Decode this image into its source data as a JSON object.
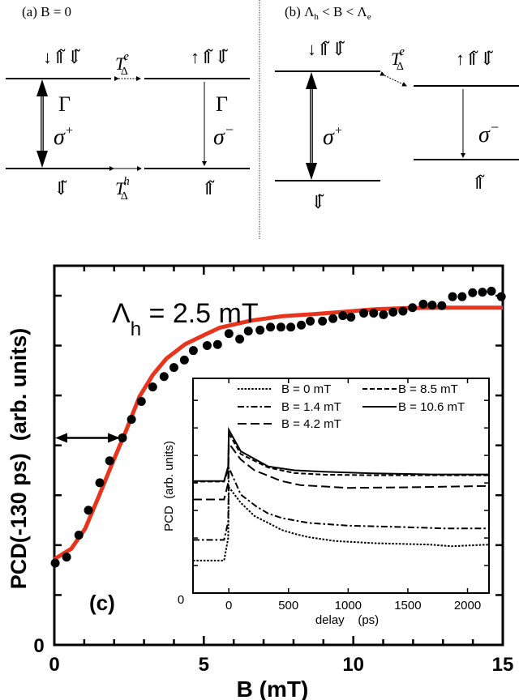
{
  "diagram": {
    "panel_a_title": "(a) B = 0",
    "panel_b_title": "(b) Λh < B < Λe",
    "panel_b_title_parts": {
      "open": "(b) Λ",
      "sub1": "h",
      "mid": " < B < Λ",
      "sub2": "e"
    },
    "upper_left_state": "↓⇑̃⇓̃",
    "upper_right_state": "↑⇑̃⇓̃",
    "lower_left_state": "⇓̃",
    "lower_right_state": "⇑̃",
    "gamma": "Γ",
    "sigma": "σ",
    "sigma_plus": "+",
    "sigma_minus": "−",
    "T": "T",
    "T_sub": "Δ",
    "T_sup_e": "e",
    "T_sup_h": "h"
  },
  "chart_data": [
    {
      "type": "scatter",
      "panel_label": "(c)",
      "annotation": {
        "symbol": "Λ",
        "sub": "h",
        "text": " = 2.5 mT"
      },
      "xlabel": "B (mT)",
      "ylabel": "PCD(-130 ps)  (arb. units)",
      "xlim": [
        0,
        15
      ],
      "ylim": [
        0,
        7.6
      ],
      "xticks": [
        0,
        5,
        10,
        15
      ],
      "yticks_labeled": [
        0
      ],
      "grid": false,
      "colors": {
        "points": "#000000",
        "fit": "#e8341c"
      },
      "points": {
        "x": [
          0.03,
          0.41,
          0.82,
          1.14,
          1.52,
          1.85,
          2.28,
          2.58,
          2.91,
          3.29,
          3.67,
          4.0,
          4.35,
          4.65,
          5.11,
          5.46,
          5.84,
          6.2,
          6.49,
          6.88,
          7.23,
          7.58,
          7.91,
          8.26,
          8.56,
          8.97,
          9.32,
          9.65,
          9.92,
          10.35,
          10.68,
          11.01,
          11.33,
          11.66,
          11.98,
          12.34,
          12.64,
          12.96,
          13.32,
          13.64,
          13.99,
          14.32,
          14.62,
          14.95
        ],
        "y": [
          1.64,
          1.76,
          2.2,
          2.7,
          3.25,
          3.69,
          4.15,
          4.52,
          4.88,
          5.17,
          5.38,
          5.56,
          5.71,
          5.9,
          6.0,
          6.02,
          6.24,
          6.13,
          6.29,
          6.31,
          6.37,
          6.37,
          6.37,
          6.41,
          6.49,
          6.49,
          6.54,
          6.6,
          6.57,
          6.65,
          6.65,
          6.62,
          6.67,
          6.69,
          6.76,
          6.83,
          6.81,
          6.8,
          6.98,
          6.98,
          7.06,
          7.07,
          7.09,
          6.98
        ]
      },
      "fit": {
        "x": [
          0,
          0.57,
          1.03,
          1.49,
          1.93,
          2.39,
          2.85,
          3.29,
          3.75,
          4.38,
          5.11,
          5.54,
          6.58,
          7.64,
          8.67,
          9.73,
          10.76,
          11.82,
          12.85,
          13.89,
          15
        ],
        "y": [
          1.72,
          1.93,
          2.33,
          2.98,
          3.63,
          4.28,
          4.98,
          5.41,
          5.74,
          6.03,
          6.24,
          6.36,
          6.5,
          6.59,
          6.63,
          6.68,
          6.73,
          6.75,
          6.76,
          6.76,
          6.76
        ]
      },
      "double_arrow": {
        "y": 4.15,
        "x_from": 0,
        "x_to": 2.2
      }
    },
    {
      "type": "line",
      "xlabel": "delay    (ps)",
      "ylabel": "PCD  (arb. units)",
      "xlim": [
        -300,
        2180
      ],
      "ylim": [
        0,
        7.8
      ],
      "xticks": [
        0,
        500,
        1000,
        1500,
        2000
      ],
      "yticks_labeled": [
        0
      ],
      "legend_placement": "top",
      "series": [
        {
          "name": "B = 0 mT",
          "dash": "dotted",
          "x": [
            -300,
            -40,
            -5,
            0,
            100,
            215,
            330,
            440,
            554,
            667,
            893,
            1232,
            1684,
            1865,
            2176
          ],
          "y": [
            1.18,
            1.18,
            2.0,
            3.85,
            3.28,
            2.8,
            2.55,
            2.3,
            2.15,
            2.03,
            1.89,
            1.81,
            1.76,
            1.7,
            1.76
          ]
        },
        {
          "name": "B = 1.4 mT",
          "dash": "dash-dot",
          "x": [
            -300,
            -40,
            -5,
            0,
            100,
            230,
            330,
            450,
            667,
            1000,
            1450,
            1800,
            2176
          ],
          "y": [
            1.93,
            1.93,
            2.6,
            4.56,
            3.58,
            3.15,
            2.89,
            2.72,
            2.55,
            2.45,
            2.4,
            2.35,
            2.35
          ]
        },
        {
          "name": "B = 4.2 mT",
          "dash": "long-dash",
          "x": [
            -300,
            -40,
            -5,
            0,
            100,
            215,
            440,
            600,
            1000,
            1500,
            2176
          ],
          "y": [
            3.4,
            3.4,
            4.0,
            5.44,
            4.85,
            4.46,
            4.07,
            3.92,
            3.82,
            3.84,
            3.89
          ]
        },
        {
          "name": "B = 8.5 mT",
          "dash": "dash",
          "x": [
            -300,
            -40,
            -5,
            0,
            100,
            330,
            550,
            800,
            1200,
            1700,
            2176
          ],
          "y": [
            4.05,
            4.05,
            4.5,
            5.8,
            5.05,
            4.56,
            4.36,
            4.3,
            4.28,
            4.28,
            4.28
          ]
        },
        {
          "name": "B = 10.6 mT",
          "dash": "solid",
          "x": [
            -300,
            -40,
            -5,
            0,
            100,
            330,
            550,
            800,
            1200,
            1700,
            2176
          ],
          "y": [
            4.07,
            4.07,
            4.6,
            5.93,
            5.15,
            4.6,
            4.46,
            4.41,
            4.35,
            4.31,
            4.31
          ]
        }
      ]
    }
  ]
}
